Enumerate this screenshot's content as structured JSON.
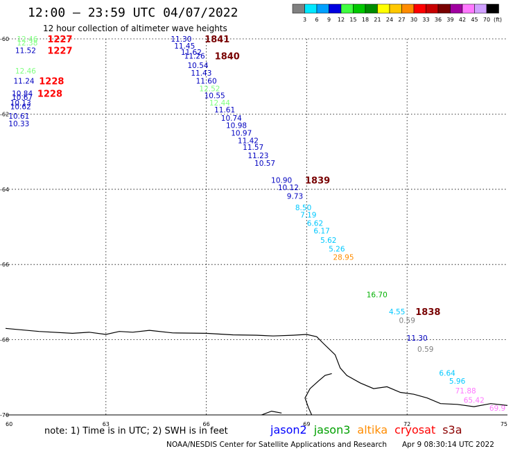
{
  "title": "12:00 – 23:59 UTC 04/07/2022",
  "subtitle": "12 hour collection of altimeter wave heights",
  "legend": {
    "unit": "(ft)",
    "bins": [
      {
        "label": "3",
        "color": "#808080"
      },
      {
        "label": "6",
        "color": "#00e8ff"
      },
      {
        "label": "9",
        "color": "#00a0ff"
      },
      {
        "label": "12",
        "color": "#0000e0"
      },
      {
        "label": "15",
        "color": "#40ff40"
      },
      {
        "label": "18",
        "color": "#00c800"
      },
      {
        "label": "21",
        "color": "#008c00"
      },
      {
        "label": "24",
        "color": "#ffff00"
      },
      {
        "label": "27",
        "color": "#ffc800"
      },
      {
        "label": "30",
        "color": "#ff8c00"
      },
      {
        "label": "33",
        "color": "#ff0000"
      },
      {
        "label": "36",
        "color": "#c80000"
      },
      {
        "label": "39",
        "color": "#780000"
      },
      {
        "label": "42",
        "color": "#a000a0"
      },
      {
        "label": "45",
        "color": "#ff78ff"
      },
      {
        "label": "70",
        "color": "#d0a0ff"
      },
      {
        "label": "",
        "color": "#000000"
      }
    ]
  },
  "axes": {
    "lon_range": [
      60,
      75
    ],
    "lat_range": [
      -60,
      -70
    ],
    "lon_ticks": [
      {
        "value": 60,
        "label": "60"
      },
      {
        "value": 63,
        "label": "63"
      },
      {
        "value": 66,
        "label": "66"
      },
      {
        "value": 69,
        "label": "69"
      },
      {
        "value": 72,
        "label": "72"
      },
      {
        "value": 75,
        "label": "75"
      }
    ],
    "lat_ticks": [
      {
        "value": -60,
        "label": "-60"
      },
      {
        "value": -62,
        "label": "-62"
      },
      {
        "value": -64,
        "label": "-64"
      },
      {
        "value": -66,
        "label": "-66"
      },
      {
        "value": -68,
        "label": "-68"
      },
      {
        "value": -70,
        "label": "-70"
      }
    ]
  },
  "observations": [
    {
      "lon": 60.65,
      "lat": -60.0,
      "value": "12.46",
      "color": "#80ff80"
    },
    {
      "lon": 60.65,
      "lat": -60.1,
      "value": "12.38",
      "color": "#80ff80"
    },
    {
      "lon": 60.6,
      "lat": -60.3,
      "value": "11.52",
      "color": "#0000c0"
    },
    {
      "lon": 60.6,
      "lat": -60.85,
      "value": "12.46",
      "color": "#80ff80"
    },
    {
      "lon": 60.55,
      "lat": -61.12,
      "value": "11.24",
      "color": "#0000c0"
    },
    {
      "lon": 60.5,
      "lat": -61.45,
      "value": "10.84",
      "color": "#0000c0"
    },
    {
      "lon": 60.5,
      "lat": -61.55,
      "value": "10.67",
      "color": "#0000c0"
    },
    {
      "lon": 60.45,
      "lat": -61.7,
      "value": "10.13",
      "color": "#0000c0"
    },
    {
      "lon": 60.45,
      "lat": -61.8,
      "value": "10.62",
      "color": "#0000c0"
    },
    {
      "lon": 60.4,
      "lat": -62.05,
      "value": "10.61",
      "color": "#0000c0"
    },
    {
      "lon": 60.4,
      "lat": -62.25,
      "value": "10.33",
      "color": "#0000c0"
    },
    {
      "lon": 65.25,
      "lat": -60.0,
      "value": "11.30",
      "color": "#0000c0"
    },
    {
      "lon": 65.35,
      "lat": -60.18,
      "value": "11.45",
      "color": "#0000c0"
    },
    {
      "lon": 65.55,
      "lat": -60.35,
      "value": "11.62",
      "color": "#0000c0"
    },
    {
      "lon": 65.65,
      "lat": -60.45,
      "value": "11.26",
      "color": "#0000c0"
    },
    {
      "lon": 65.75,
      "lat": -60.7,
      "value": "10.54",
      "color": "#0000c0"
    },
    {
      "lon": 65.85,
      "lat": -60.9,
      "value": "11.43",
      "color": "#0000c0"
    },
    {
      "lon": 66.0,
      "lat": -61.12,
      "value": "11.60",
      "color": "#0000c0"
    },
    {
      "lon": 66.1,
      "lat": -61.32,
      "value": "12.52",
      "color": "#80ff80"
    },
    {
      "lon": 66.25,
      "lat": -61.5,
      "value": "10.55",
      "color": "#0000c0"
    },
    {
      "lon": 66.4,
      "lat": -61.7,
      "value": "12.44",
      "color": "#80ff80"
    },
    {
      "lon": 66.55,
      "lat": -61.88,
      "value": "11.61",
      "color": "#0000c0"
    },
    {
      "lon": 66.75,
      "lat": -62.1,
      "value": "10.74",
      "color": "#0000c0"
    },
    {
      "lon": 66.9,
      "lat": -62.3,
      "value": "10.98",
      "color": "#0000c0"
    },
    {
      "lon": 67.05,
      "lat": -62.5,
      "value": "10.97",
      "color": "#0000c0"
    },
    {
      "lon": 67.25,
      "lat": -62.7,
      "value": "11.42",
      "color": "#0000c0"
    },
    {
      "lon": 67.4,
      "lat": -62.88,
      "value": "11.57",
      "color": "#0000c0"
    },
    {
      "lon": 67.55,
      "lat": -63.1,
      "value": "11.23",
      "color": "#0000c0"
    },
    {
      "lon": 67.75,
      "lat": -63.3,
      "value": "10.57",
      "color": "#0000c0"
    },
    {
      "lon": 68.25,
      "lat": -63.75,
      "value": "10.90",
      "color": "#0000c0"
    },
    {
      "lon": 68.45,
      "lat": -63.95,
      "value": "10.12",
      "color": "#0000c0"
    },
    {
      "lon": 68.65,
      "lat": -64.18,
      "value": "9.73",
      "color": "#0000c0"
    },
    {
      "lon": 68.9,
      "lat": -64.48,
      "value": "8.50",
      "color": "#00c8ff"
    },
    {
      "lon": 69.05,
      "lat": -64.68,
      "value": "7.19",
      "color": "#00c8ff"
    },
    {
      "lon": 69.25,
      "lat": -64.9,
      "value": "6.62",
      "color": "#00c8ff"
    },
    {
      "lon": 69.45,
      "lat": -65.1,
      "value": "6.17",
      "color": "#00c8ff"
    },
    {
      "lon": 69.65,
      "lat": -65.35,
      "value": "5.62",
      "color": "#00c8ff"
    },
    {
      "lon": 69.9,
      "lat": -65.58,
      "value": "5.26",
      "color": "#00c8ff"
    },
    {
      "lon": 70.1,
      "lat": -65.8,
      "value": "28.95",
      "color": "#ff8c00"
    },
    {
      "lon": 71.1,
      "lat": -66.8,
      "value": "16.70",
      "color": "#00b000"
    },
    {
      "lon": 71.7,
      "lat": -67.25,
      "value": "4.55",
      "color": "#00c8ff"
    },
    {
      "lon": 72.0,
      "lat": -67.48,
      "value": "0.59",
      "color": "#808080"
    },
    {
      "lon": 72.3,
      "lat": -67.95,
      "value": "11.30",
      "color": "#0000c0"
    },
    {
      "lon": 72.55,
      "lat": -68.25,
      "value": "0.59",
      "color": "#808080"
    },
    {
      "lon": 73.2,
      "lat": -68.88,
      "value": "6.64",
      "color": "#00c8ff"
    },
    {
      "lon": 73.5,
      "lat": -69.1,
      "value": "5.96",
      "color": "#00c8ff"
    },
    {
      "lon": 73.75,
      "lat": -69.35,
      "value": "71.88",
      "color": "#ff78ff"
    },
    {
      "lon": 74.0,
      "lat": -69.6,
      "value": "65.42",
      "color": "#ff78ff"
    },
    {
      "lon": 74.7,
      "lat": -69.82,
      "value": "69.9",
      "color": "#ff78ff"
    }
  ],
  "times": [
    {
      "lon": 61.25,
      "lat": -60.0,
      "label": "1227",
      "color": "#ff0000"
    },
    {
      "lon": 61.25,
      "lat": -60.3,
      "label": "1227",
      "color": "#ff0000"
    },
    {
      "lon": 61.0,
      "lat": -61.12,
      "label": "1228",
      "color": "#ff0000"
    },
    {
      "lon": 60.95,
      "lat": -61.45,
      "label": "1228",
      "color": "#ff0000"
    },
    {
      "lon": 65.95,
      "lat": -60.0,
      "label": "1841",
      "color": "#780000"
    },
    {
      "lon": 66.25,
      "lat": -60.45,
      "label": "1840",
      "color": "#780000"
    },
    {
      "lon": 68.95,
      "lat": -63.75,
      "label": "1839",
      "color": "#780000"
    },
    {
      "lon": 72.25,
      "lat": -67.25,
      "label": "1838",
      "color": "#780000"
    }
  ],
  "coastline": [
    [
      60.0,
      -67.7
    ],
    [
      61.0,
      -67.78
    ],
    [
      62.0,
      -67.83
    ],
    [
      62.5,
      -67.8
    ],
    [
      63.0,
      -67.86
    ],
    [
      63.4,
      -67.78
    ],
    [
      63.8,
      -67.8
    ],
    [
      64.3,
      -67.75
    ],
    [
      65.0,
      -67.82
    ],
    [
      66.0,
      -67.83
    ],
    [
      66.8,
      -67.87
    ],
    [
      67.5,
      -67.88
    ],
    [
      68.0,
      -67.9
    ],
    [
      68.6,
      -67.88
    ],
    [
      69.0,
      -67.86
    ],
    [
      69.3,
      -67.92
    ],
    [
      69.5,
      -68.1
    ],
    [
      69.85,
      -68.4
    ],
    [
      70.0,
      -68.75
    ],
    [
      70.2,
      -68.95
    ],
    [
      70.6,
      -69.15
    ],
    [
      71.0,
      -69.3
    ],
    [
      71.4,
      -69.25
    ],
    [
      71.8,
      -69.4
    ],
    [
      72.2,
      -69.45
    ],
    [
      72.6,
      -69.55
    ],
    [
      73.0,
      -69.7
    ],
    [
      73.5,
      -69.72
    ],
    [
      74.0,
      -69.78
    ],
    [
      74.5,
      -69.7
    ],
    [
      75.0,
      -69.75
    ]
  ],
  "inlet": [
    [
      69.15,
      -70.0
    ],
    [
      69.05,
      -69.8
    ],
    [
      68.95,
      -69.55
    ],
    [
      69.1,
      -69.3
    ],
    [
      69.35,
      -69.1
    ],
    [
      69.55,
      -68.95
    ],
    [
      69.75,
      -68.9
    ]
  ],
  "inlet2": [
    [
      67.65,
      -70.0
    ],
    [
      67.95,
      -69.9
    ],
    [
      68.25,
      -69.95
    ]
  ],
  "note": "note: 1) Time is in UTC; 2) SWH is in feet",
  "satellites": [
    {
      "name": "jason2",
      "color": "#0000ff"
    },
    {
      "name": "jason3",
      "color": "#00a000"
    },
    {
      "name": "altika",
      "color": "#ff8c00"
    },
    {
      "name": "cryosat",
      "color": "#ff0000"
    },
    {
      "name": "s3a",
      "color": "#8b0000"
    }
  ],
  "credit": "NOAA/NESDIS Center for Satellite Applications and Research",
  "timestamp": "Apr  9 08:30:14 UTC 2022"
}
